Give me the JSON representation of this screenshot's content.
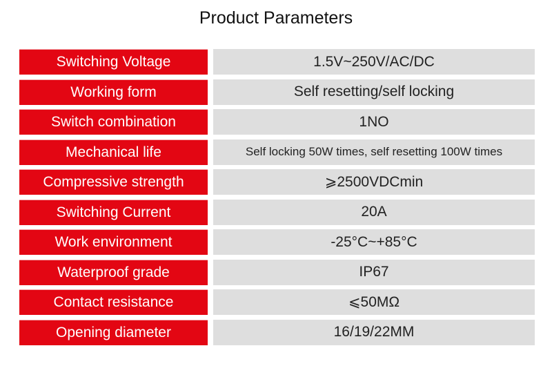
{
  "title": "Product Parameters",
  "rows": [
    {
      "label": "Switching Voltage",
      "value": "1.5V~250V/AC/DC"
    },
    {
      "label": "Working form",
      "value": "Self resetting/self locking"
    },
    {
      "label": "Switch combination",
      "value": "1NO"
    },
    {
      "label": "Mechanical life",
      "value": "Self locking 50W times, self resetting 100W times"
    },
    {
      "label": "Compressive strength",
      "value": "⩾2500VDCmin"
    },
    {
      "label": "Switching Current",
      "value": "20A"
    },
    {
      "label": "Work environment",
      "value": "-25°C~+85°C"
    },
    {
      "label": "Waterproof grade",
      "value": "IP67"
    },
    {
      "label": "Contact resistance",
      "value": "⩽50MΩ"
    },
    {
      "label": "Opening diameter",
      "value": "16/19/22MM"
    }
  ],
  "colors": {
    "label_background": "#e30613",
    "value_background": "#dedede"
  }
}
